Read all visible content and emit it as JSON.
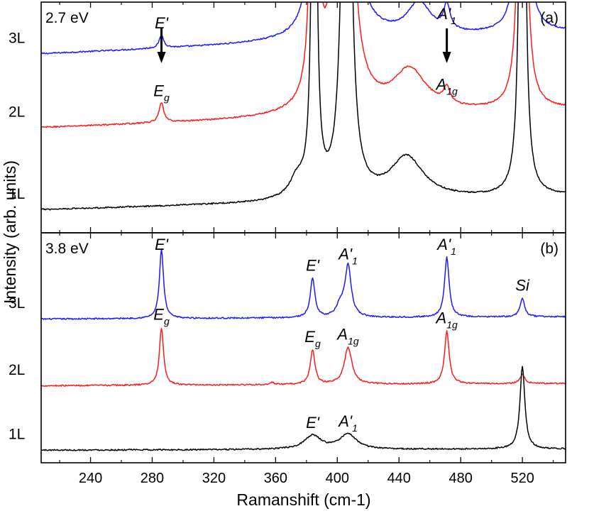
{
  "chart_data": {
    "type": "line",
    "xlabel": "Ramanshift (cm-1)",
    "ylabel": "Intensity (arb. units)",
    "xlim": [
      208,
      548
    ],
    "xticks": [
      240,
      280,
      320,
      360,
      400,
      440,
      480,
      520
    ],
    "xtick_labels": [
      "240",
      "280",
      "320",
      "360",
      "400",
      "440",
      "480",
      "520"
    ],
    "panels": [
      {
        "panel_label": "(a)",
        "excitation": "2.7 eV",
        "series": [
          {
            "name": "3L",
            "color": "#1a1aff",
            "baseline": 0.775,
            "slope": 0.095,
            "peaks": [
              {
                "pos": 286,
                "amp": 0.055,
                "width": 1.8,
                "label": {
                  "base": "E",
                  "prime": "'",
                  "sub": ""
                }
              },
              {
                "pos": 385,
                "amp": 3.0,
                "width": 1.6
              },
              {
                "pos": 402,
                "amp": 0.7,
                "width": 7.0
              },
              {
                "pos": 406,
                "amp": 3.0,
                "width": 2.2
              },
              {
                "pos": 453,
                "amp": 0.14,
                "width": 9.0
              },
              {
                "pos": 471,
                "amp": 0.11,
                "width": 2.6,
                "label": {
                  "base": "A",
                  "prime": "'",
                  "sub": "1"
                }
              },
              {
                "pos": 520,
                "amp": 3.0,
                "width": 1.9
              }
            ]
          },
          {
            "name": "2L",
            "color": "#ff1a1a",
            "baseline": 0.455,
            "slope": 0.08,
            "peaks": [
              {
                "pos": 286,
                "amp": 0.085,
                "width": 1.8,
                "label": {
                  "base": "E",
                  "prime": "",
                  "sub": "g"
                }
              },
              {
                "pos": 385,
                "amp": 3.0,
                "width": 1.6
              },
              {
                "pos": 402,
                "amp": 0.75,
                "width": 7.0
              },
              {
                "pos": 406,
                "amp": 3.0,
                "width": 2.2
              },
              {
                "pos": 447,
                "amp": 0.18,
                "width": 13.0
              },
              {
                "pos": 471,
                "amp": 0.07,
                "width": 2.6,
                "label": {
                  "base": "A",
                  "prime": "",
                  "sub": "1g"
                }
              },
              {
                "pos": 520,
                "amp": 3.0,
                "width": 1.9
              }
            ]
          },
          {
            "name": "1L",
            "color": "#000000",
            "baseline": 0.1,
            "slope": 0.06,
            "peaks": [
              {
                "pos": 374,
                "amp": 0.08,
                "width": 6.0
              },
              {
                "pos": 385,
                "amp": 3.0,
                "width": 1.4
              },
              {
                "pos": 406,
                "amp": 3.0,
                "width": 2.6
              },
              {
                "pos": 445,
                "amp": 0.18,
                "width": 13.0
              },
              {
                "pos": 520,
                "amp": 3.0,
                "width": 1.7
              }
            ]
          }
        ],
        "arrows": [
          {
            "x": 286
          },
          {
            "x": 471
          }
        ]
      },
      {
        "panel_label": "(b)",
        "excitation": "3.8 eV",
        "series": [
          {
            "name": "3L",
            "color": "#1a1aff",
            "baseline": 0.625,
            "slope": 0.01,
            "peaks": [
              {
                "pos": 286,
                "amp": 0.3,
                "width": 1.6,
                "label": {
                  "base": "E",
                  "prime": "'",
                  "sub": ""
                }
              },
              {
                "pos": 384,
                "amp": 0.17,
                "width": 1.8,
                "label": {
                  "base": "E",
                  "prime": "'",
                  "sub": ""
                }
              },
              {
                "pos": 402,
                "amp": 0.05,
                "width": 3.0
              },
              {
                "pos": 407,
                "amp": 0.22,
                "width": 2.4,
                "label": {
                  "base": "A",
                  "prime": "'",
                  "sub": "1"
                }
              },
              {
                "pos": 471,
                "amp": 0.26,
                "width": 1.8,
                "label": {
                  "base": "A",
                  "prime": "'",
                  "sub": "1"
                }
              },
              {
                "pos": 520,
                "amp": 0.08,
                "width": 1.8,
                "label": {
                  "base": "Si",
                  "prime": "",
                  "sub": ""
                }
              }
            ]
          },
          {
            "name": "2L",
            "color": "#ff1a1a",
            "baseline": 0.335,
            "slope": 0.01,
            "peaks": [
              {
                "pos": 286,
                "amp": 0.25,
                "width": 1.6,
                "label": {
                  "base": "E",
                  "prime": "",
                  "sub": "g"
                }
              },
              {
                "pos": 358,
                "amp": 0.01,
                "width": 1.2
              },
              {
                "pos": 384,
                "amp": 0.15,
                "width": 1.8,
                "label": {
                  "base": "E",
                  "prime": "",
                  "sub": "g"
                }
              },
              {
                "pos": 407,
                "amp": 0.16,
                "width": 3.0,
                "label": {
                  "base": "A",
                  "prime": "",
                  "sub": "1g"
                }
              },
              {
                "pos": 471,
                "amp": 0.23,
                "width": 1.8,
                "label": {
                  "base": "A",
                  "prime": "",
                  "sub": "1g"
                }
              },
              {
                "pos": 520,
                "amp": 0.04,
                "width": 1.9
              }
            ]
          },
          {
            "name": "1L",
            "color": "#000000",
            "baseline": 0.055,
            "slope": 0.005,
            "peaks": [
              {
                "pos": 384,
                "amp": 0.06,
                "width": 6.5,
                "label": {
                  "base": "E",
                  "prime": "'",
                  "sub": ""
                }
              },
              {
                "pos": 407,
                "amp": 0.065,
                "width": 6.5,
                "label": {
                  "base": "A",
                  "prime": "'",
                  "sub": "1"
                }
              },
              {
                "pos": 520,
                "amp": 0.36,
                "width": 1.9
              }
            ]
          }
        ]
      }
    ]
  }
}
